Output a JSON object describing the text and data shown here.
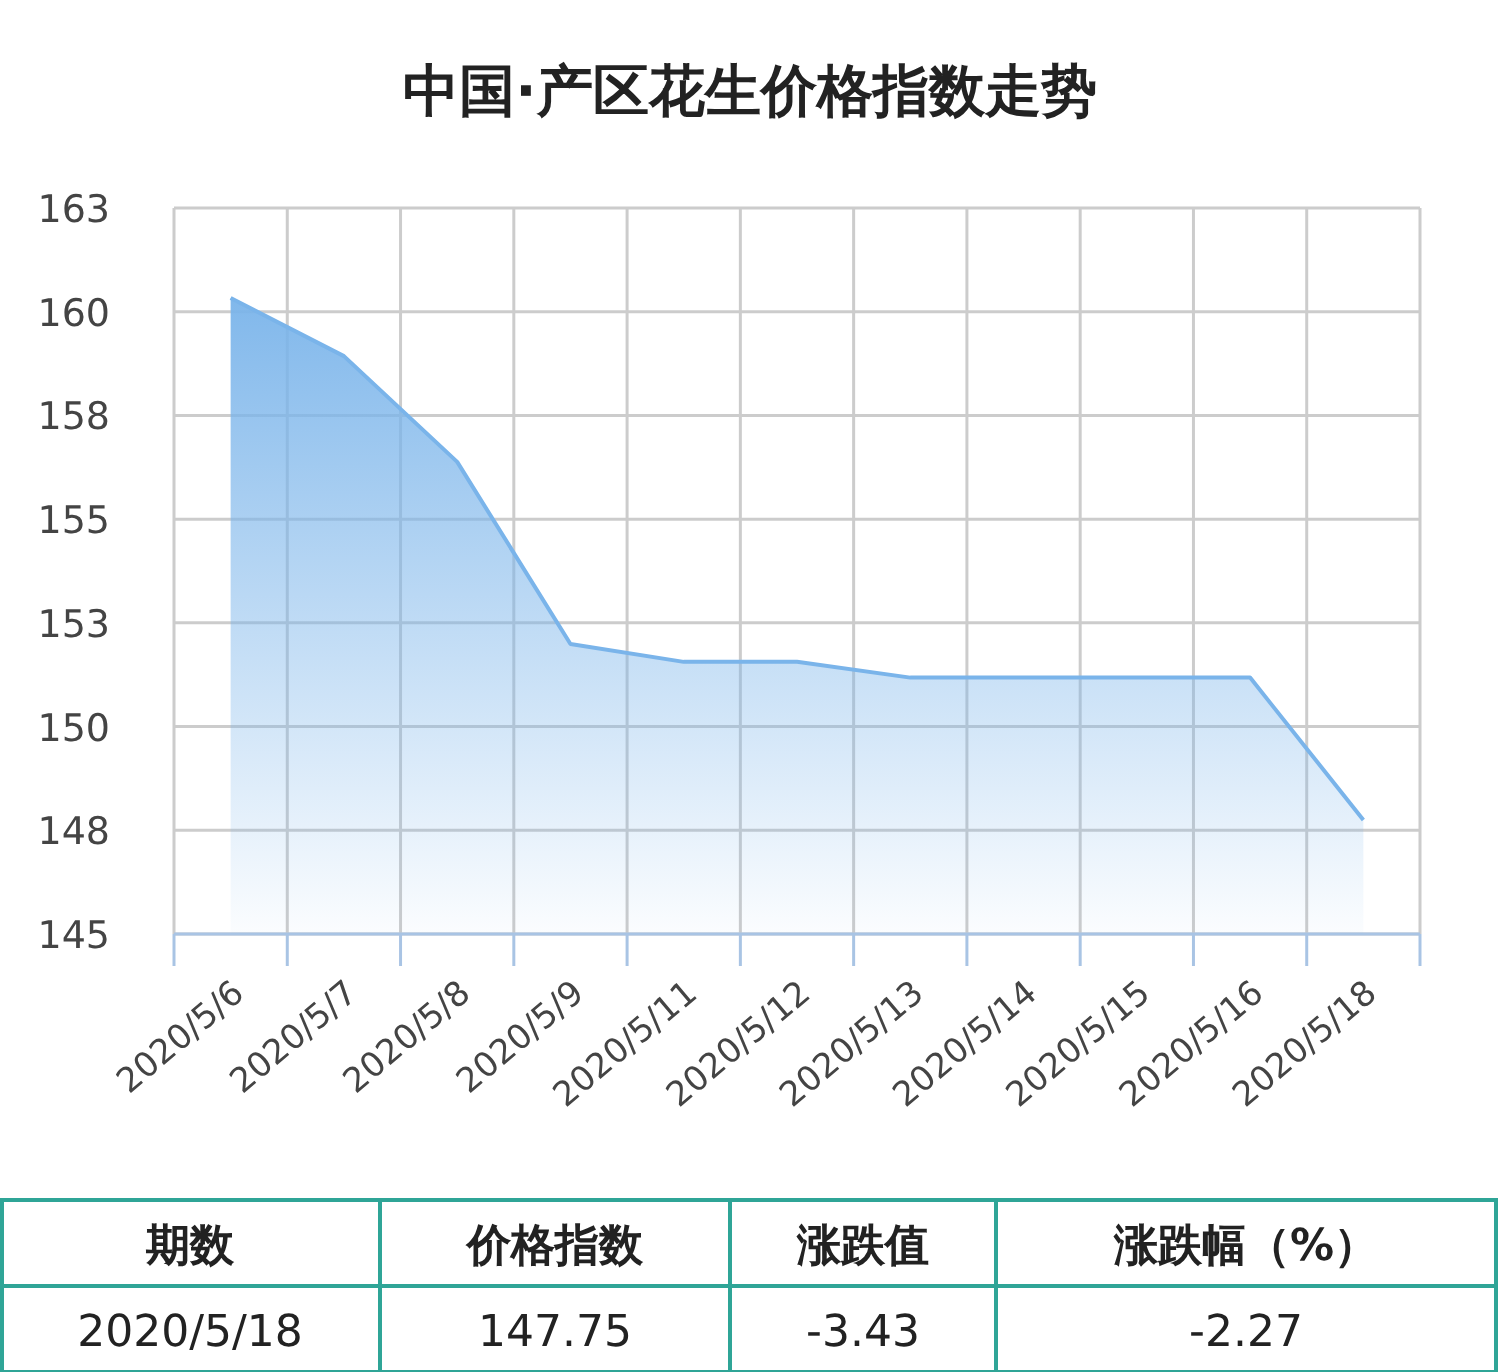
{
  "chart_data": {
    "type": "area",
    "title": "中国·产区花生价格指数走势",
    "categories": [
      "2020/5/6",
      "2020/5/7",
      "2020/5/8",
      "2020/5/9",
      "2020/5/11",
      "2020/5/12",
      "2020/5/13",
      "2020/5/14",
      "2020/5/15",
      "2020/5/16",
      "2020/5/18"
    ],
    "series": [
      {
        "color": "#7ab4ea",
        "values": [
          160.33,
          158.93,
          156.38,
          151.99,
          151.56,
          151.56,
          151.18,
          151.18,
          151.18,
          151.18,
          147.75
        ]
      }
    ],
    "ylim": [
      145,
      162.5
    ],
    "yticks": [
      145,
      {
        "value": 147.5,
        "label": "148"
      },
      150,
      {
        "value": 152.5,
        "label": "153"
      },
      155,
      {
        "value": 157.5,
        "label": "158"
      },
      160,
      {
        "value": 162.5,
        "label": "163"
      }
    ],
    "grid": true,
    "annotations": [
      "期数",
      "价格指数",
      "涨跌值",
      "涨跌幅（%）",
      "2020/5/18",
      "147.75",
      "-3.43",
      "-2.27"
    ]
  }
}
